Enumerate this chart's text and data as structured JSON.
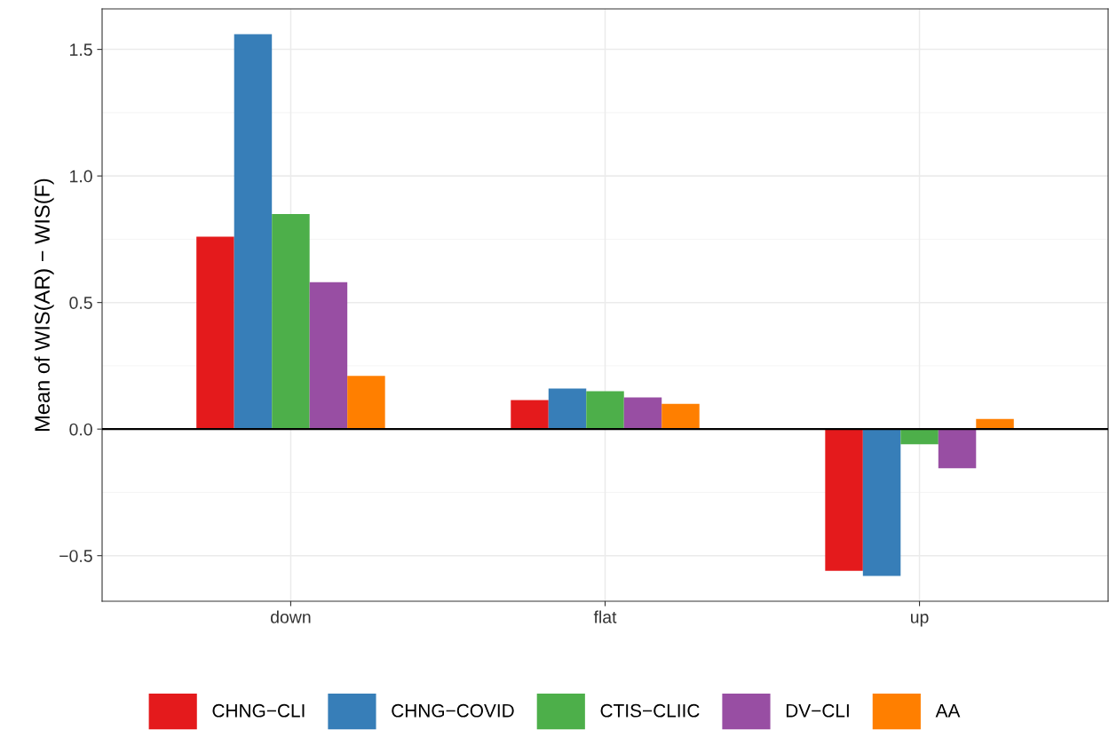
{
  "chart_data": {
    "type": "bar",
    "ylabel": "Mean of WIS(AR) − WIS(F)",
    "categories": [
      "down",
      "flat",
      "up"
    ],
    "series": [
      {
        "name": "CHNG−CLI",
        "color": "#e41a1c",
        "values": [
          0.76,
          0.115,
          -0.56
        ]
      },
      {
        "name": "CHNG−COVID",
        "color": "#377eb8",
        "values": [
          1.56,
          0.16,
          -0.58
        ]
      },
      {
        "name": "CTIS−CLIIC",
        "color": "#4daf4a",
        "values": [
          0.85,
          0.15,
          -0.06
        ]
      },
      {
        "name": "DV−CLI",
        "color": "#984ea3",
        "values": [
          0.58,
          0.125,
          -0.155
        ]
      },
      {
        "name": "AA",
        "color": "#ff7f00",
        "values": [
          0.21,
          0.1,
          0.04
        ]
      }
    ],
    "ylim": [
      -0.68,
      1.66
    ],
    "yticks": [
      {
        "value": -0.5,
        "label": "−0.5"
      },
      {
        "value": 0,
        "label": "0.0"
      },
      {
        "value": 0.5,
        "label": "0.5"
      },
      {
        "value": 1.0,
        "label": "1.0"
      },
      {
        "value": 1.5,
        "label": "1.5"
      }
    ],
    "ref_lines": [
      {
        "axis": "y",
        "value": 0,
        "color": "#000000"
      }
    ],
    "grid": true,
    "legend": "bottom"
  }
}
